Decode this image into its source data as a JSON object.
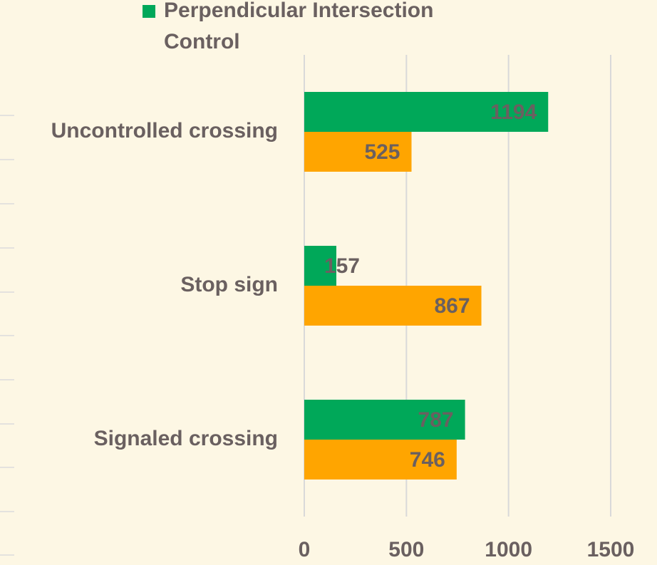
{
  "chart_data": {
    "type": "bar",
    "orientation": "horizontal",
    "categories": [
      "Uncontrolled crossing",
      "Stop sign",
      "Signaled crossing"
    ],
    "series": [
      {
        "name": "Perpendicular Intersection Control",
        "color": "#00a859",
        "values": [
          1194,
          157,
          787
        ]
      },
      {
        "color": "#ffa500",
        "values": [
          525,
          867,
          746
        ]
      }
    ],
    "xlim": [
      0,
      1500
    ],
    "xticks": [
      0,
      500,
      1000,
      1500
    ],
    "grid": true
  }
}
